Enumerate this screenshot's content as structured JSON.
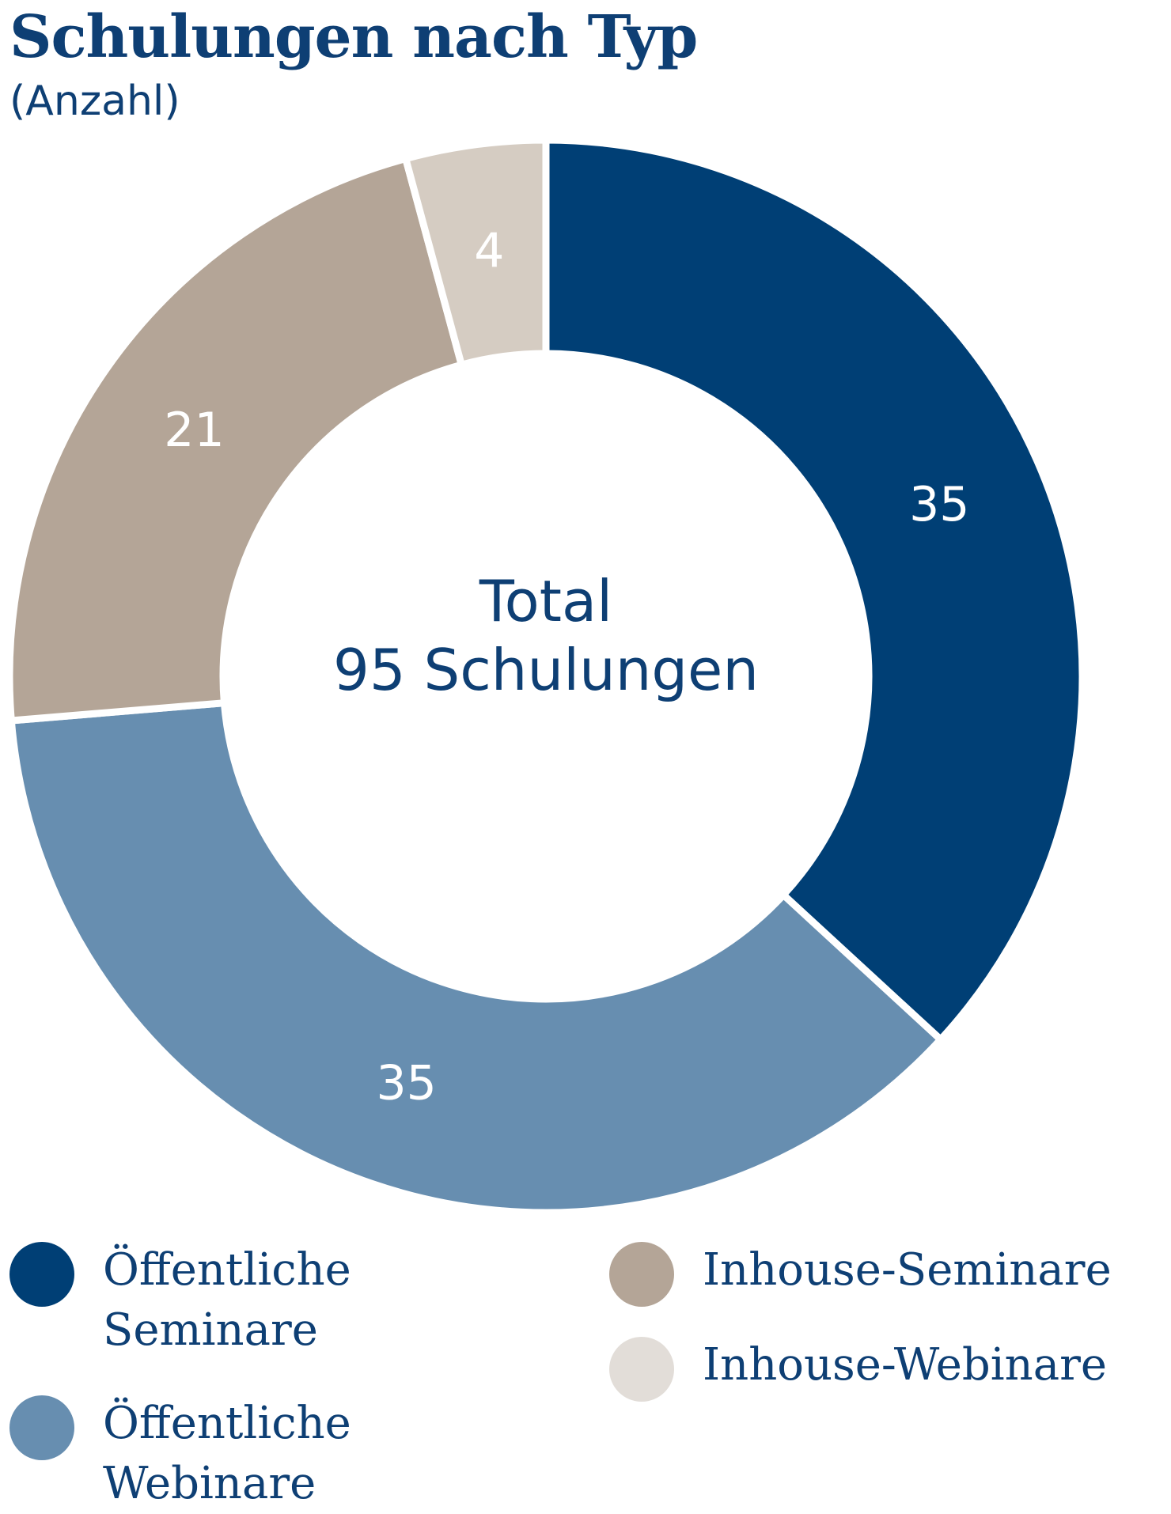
{
  "chart_data": {
    "type": "pie",
    "title": "Schulungen nach Typ",
    "subtitle": "(Anzahl)",
    "center_text": [
      "Total",
      "95 Schulungen"
    ],
    "slices": [
      {
        "label": "Öffentliche Seminare",
        "value": 35,
        "color": "#003f75"
      },
      {
        "label": "Öffentliche Webinare",
        "value": 35,
        "color": "#678eb0"
      },
      {
        "label": "Inhouse-Seminare",
        "value": 21,
        "color": "#b4a597"
      },
      {
        "label": "Inhouse-Webinare",
        "value": 4,
        "color": "#d5ccc2"
      }
    ],
    "legend": [
      {
        "label": "Öffentliche\nSeminare",
        "color": "#003f75"
      },
      {
        "label": "Öffentliche\nWebinare",
        "color": "#678eb0"
      },
      {
        "label": "Inhouse-Seminare",
        "color": "#b4a597"
      },
      {
        "label": "Inhouse-Webinare",
        "color": "#e2ddd8"
      }
    ]
  }
}
